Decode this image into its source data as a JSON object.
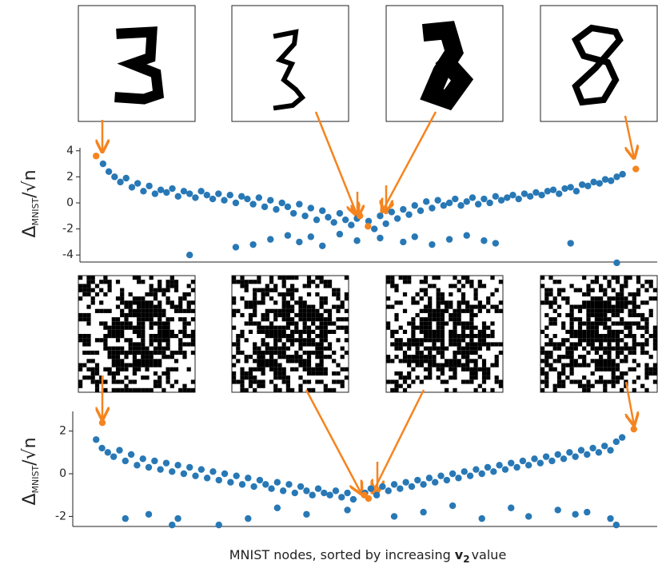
{
  "chart_data": [
    {
      "type": "scatter",
      "y_label": {
        "symbol": "Δ",
        "subscript": "MNIST",
        "rest": "/√n"
      },
      "xlim": [
        0,
        100
      ],
      "ylim": [
        -4.54,
        4.23
      ],
      "yticks": [
        -4,
        -2,
        0,
        2,
        4
      ],
      "series": [
        {
          "color": "#2878b5",
          "x": [
            4,
            5,
            6,
            7,
            8,
            9,
            10,
            11,
            12,
            13,
            14,
            15,
            16,
            17,
            18,
            19,
            20,
            21,
            22,
            23,
            24,
            25,
            26,
            27,
            28,
            29,
            30,
            31,
            32,
            33,
            34,
            35,
            36,
            37,
            38,
            39,
            40,
            41,
            42,
            43,
            44,
            45,
            46,
            47,
            48,
            50,
            51,
            52,
            53,
            54,
            55,
            56,
            57,
            58,
            59,
            60,
            61,
            62,
            63,
            64,
            65,
            66,
            67,
            68,
            69,
            70,
            71,
            72,
            73,
            74,
            75,
            76,
            77,
            78,
            79,
            80,
            81,
            82,
            83,
            84,
            85,
            86,
            87,
            88,
            89,
            90,
            91,
            92,
            93,
            94,
            19,
            27,
            30,
            33,
            36,
            38,
            40,
            42,
            45,
            48,
            52,
            56,
            58,
            61,
            64,
            67,
            70,
            72,
            85,
            93
          ],
          "values": [
            3.0,
            2.4,
            2.0,
            1.6,
            1.9,
            1.2,
            1.5,
            0.9,
            1.3,
            0.7,
            1.0,
            0.8,
            1.1,
            0.5,
            0.9,
            0.7,
            0.4,
            0.9,
            0.6,
            0.3,
            0.7,
            0.2,
            0.6,
            0.0,
            0.5,
            0.3,
            -0.1,
            0.4,
            -0.3,
            0.2,
            -0.5,
            0.0,
            -0.3,
            -0.8,
            -0.1,
            -1.0,
            -0.4,
            -1.3,
            -0.6,
            -1.1,
            -1.5,
            -0.8,
            -1.3,
            -1.7,
            -1.2,
            -1.4,
            -2.0,
            -1.0,
            -1.6,
            -0.7,
            -1.2,
            -0.5,
            -0.9,
            -0.2,
            -0.6,
            0.1,
            -0.4,
            0.2,
            -0.2,
            0.0,
            0.3,
            -0.2,
            0.1,
            0.4,
            -0.1,
            0.3,
            0.0,
            0.5,
            0.2,
            0.4,
            0.6,
            0.3,
            0.7,
            0.5,
            0.8,
            0.6,
            0.9,
            1.0,
            0.7,
            1.1,
            1.2,
            0.9,
            1.4,
            1.3,
            1.6,
            1.5,
            1.8,
            1.7,
            2.0,
            2.2,
            -4.0,
            -3.4,
            -3.2,
            -2.8,
            -2.5,
            -3.0,
            -2.6,
            -3.3,
            -2.4,
            -2.9,
            -2.7,
            -3.0,
            -2.6,
            -3.2,
            -2.8,
            -2.5,
            -2.9,
            -3.1,
            -3.1,
            -4.6
          ]
        },
        {
          "color": "#f5841f",
          "x": [
            2.8,
            48.5,
            49.9,
            96.3
          ],
          "values": [
            3.6,
            -1.0,
            -1.8,
            2.6
          ]
        }
      ]
    },
    {
      "type": "scatter",
      "y_label": {
        "symbol": "Δ",
        "subscript": "MNIST",
        "rest": "/√n"
      },
      "x_label": {
        "text": "MNIST nodes, sorted by increasing",
        "vector": "v",
        "subscript": "2",
        "suffix": "value"
      },
      "xlim": [
        0,
        100
      ],
      "ylim": [
        -2.47,
        2.92
      ],
      "yticks": [
        -2,
        0,
        2
      ],
      "series": [
        {
          "color": "#2878b5",
          "x": [
            4,
            5,
            6,
            7,
            8,
            9,
            10,
            11,
            12,
            13,
            14,
            15,
            16,
            17,
            18,
            19,
            20,
            21,
            22,
            23,
            24,
            25,
            26,
            27,
            28,
            29,
            30,
            31,
            32,
            33,
            34,
            35,
            36,
            37,
            38,
            39,
            40,
            41,
            42,
            43,
            44,
            45,
            46,
            47,
            48,
            50,
            51,
            52,
            53,
            54,
            55,
            56,
            57,
            58,
            59,
            60,
            61,
            62,
            63,
            64,
            65,
            66,
            67,
            68,
            69,
            70,
            71,
            72,
            73,
            74,
            75,
            76,
            77,
            78,
            79,
            80,
            81,
            82,
            83,
            84,
            85,
            86,
            87,
            88,
            89,
            90,
            91,
            92,
            93,
            94,
            9,
            13,
            17,
            18,
            25,
            30,
            35,
            40,
            47,
            55,
            60,
            65,
            70,
            75,
            78,
            83,
            86,
            88,
            92,
            93
          ],
          "values": [
            1.6,
            1.2,
            1.0,
            0.8,
            1.1,
            0.6,
            0.9,
            0.4,
            0.7,
            0.3,
            0.6,
            0.2,
            0.5,
            0.1,
            0.4,
            0.0,
            0.3,
            -0.1,
            0.2,
            -0.2,
            0.1,
            -0.3,
            0.0,
            -0.4,
            -0.1,
            -0.5,
            -0.2,
            -0.6,
            -0.3,
            -0.5,
            -0.7,
            -0.4,
            -0.8,
            -0.5,
            -0.9,
            -0.6,
            -0.8,
            -1.0,
            -0.7,
            -0.9,
            -1.0,
            -0.8,
            -1.1,
            -0.9,
            -1.2,
            -0.9,
            -0.7,
            -1.0,
            -0.6,
            -0.8,
            -0.5,
            -0.7,
            -0.4,
            -0.6,
            -0.3,
            -0.5,
            -0.2,
            -0.4,
            -0.1,
            -0.3,
            0.0,
            -0.2,
            0.1,
            -0.1,
            0.2,
            0.0,
            0.3,
            0.1,
            0.4,
            0.2,
            0.5,
            0.3,
            0.6,
            0.4,
            0.7,
            0.5,
            0.8,
            0.6,
            0.9,
            0.7,
            1.0,
            0.8,
            1.1,
            0.9,
            1.2,
            1.0,
            1.3,
            1.1,
            1.5,
            1.7,
            -2.1,
            -1.9,
            -2.4,
            -2.1,
            -2.4,
            -2.1,
            -1.6,
            -1.9,
            -1.7,
            -2.0,
            -1.8,
            -1.5,
            -2.1,
            -1.6,
            -2.0,
            -1.7,
            -1.9,
            -1.8,
            -2.1,
            -2.4
          ]
        },
        {
          "color": "#f5841f",
          "x": [
            5.06,
            49.9,
            50.6,
            96.0
          ],
          "values": [
            2.39,
            -1.0,
            -1.16,
            2.09
          ]
        }
      ]
    }
  ]
}
